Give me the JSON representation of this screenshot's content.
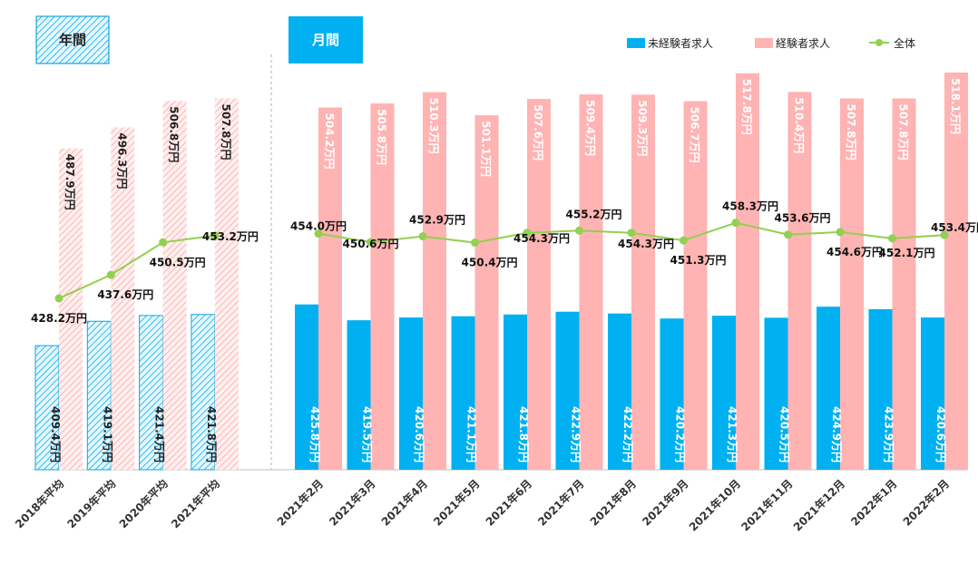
{
  "chart_data": {
    "type": "bar",
    "section_labels": {
      "annual": "年間",
      "monthly": "月間"
    },
    "legend": [
      {
        "name": "未経験者求人",
        "color": "#00b0f0"
      },
      {
        "name": "経験者求人",
        "color": "#ffb3b3"
      },
      {
        "name": "全体",
        "color": "#92d050"
      }
    ],
    "annual": {
      "categories": [
        "2018年平均",
        "2019年平均",
        "2020年平均",
        "2021年平均"
      ],
      "series": [
        {
          "name": "未経験者求人",
          "values": [
            409.4,
            419.1,
            421.4,
            421.8
          ],
          "labels": [
            "409.4万円",
            "419.1万円",
            "421.4万円",
            "421.8万円"
          ]
        },
        {
          "name": "経験者求人",
          "values": [
            487.9,
            496.3,
            506.8,
            507.8
          ],
          "labels": [
            "487.9万円",
            "496.3万円",
            "506.8万円",
            "507.8万円"
          ]
        },
        {
          "name": "全体",
          "values": [
            428.2,
            437.6,
            450.5,
            453.2
          ],
          "labels": [
            "428.2万円",
            "437.6万円",
            "450.5万円",
            "453.2万円"
          ]
        }
      ]
    },
    "monthly": {
      "categories": [
        "2021年2月",
        "2021年3月",
        "2021年4月",
        "2021年5月",
        "2021年6月",
        "2021年7月",
        "2021年8月",
        "2021年9月",
        "2021年10月",
        "2021年11月",
        "2021年12月",
        "2022年1月",
        "2022年2月"
      ],
      "series": [
        {
          "name": "未経験者求人",
          "values": [
            425.8,
            419.5,
            420.6,
            421.1,
            421.8,
            422.9,
            422.2,
            420.2,
            421.3,
            420.5,
            424.9,
            423.9,
            420.6
          ],
          "labels": [
            "425.8万円",
            "419.5万円",
            "420.6万円",
            "421.1万円",
            "421.8万円",
            "422.9万円",
            "422.2万円",
            "420.2万円",
            "421.3万円",
            "420.5万円",
            "424.9万円",
            "423.9万円",
            "420.6万円"
          ]
        },
        {
          "name": "経験者求人",
          "values": [
            504.2,
            505.8,
            510.3,
            501.1,
            507.6,
            509.4,
            509.3,
            506.7,
            517.8,
            510.4,
            507.8,
            507.8,
            518.1
          ],
          "labels": [
            "504.2万円",
            "505.8万円",
            "510.3万円",
            "501.1万円",
            "507.6万円",
            "509.4万円",
            "509.3万円",
            "506.7万円",
            "517.8万円",
            "510.4万円",
            "507.8万円",
            "507.8万円",
            "518.1万円"
          ]
        },
        {
          "name": "全体",
          "values": [
            454.0,
            450.6,
            452.9,
            450.4,
            454.3,
            455.2,
            454.3,
            451.3,
            458.3,
            453.6,
            454.6,
            452.1,
            453.4
          ],
          "labels": [
            "454.0万円",
            "450.6万円",
            "452.9万円",
            "450.4万円",
            "454.3万円",
            "455.2万円",
            "454.3万円",
            "451.3万円",
            "458.3万円",
            "453.6万円",
            "454.6万円",
            "452.1万円",
            "453.4万円"
          ]
        }
      ]
    }
  }
}
